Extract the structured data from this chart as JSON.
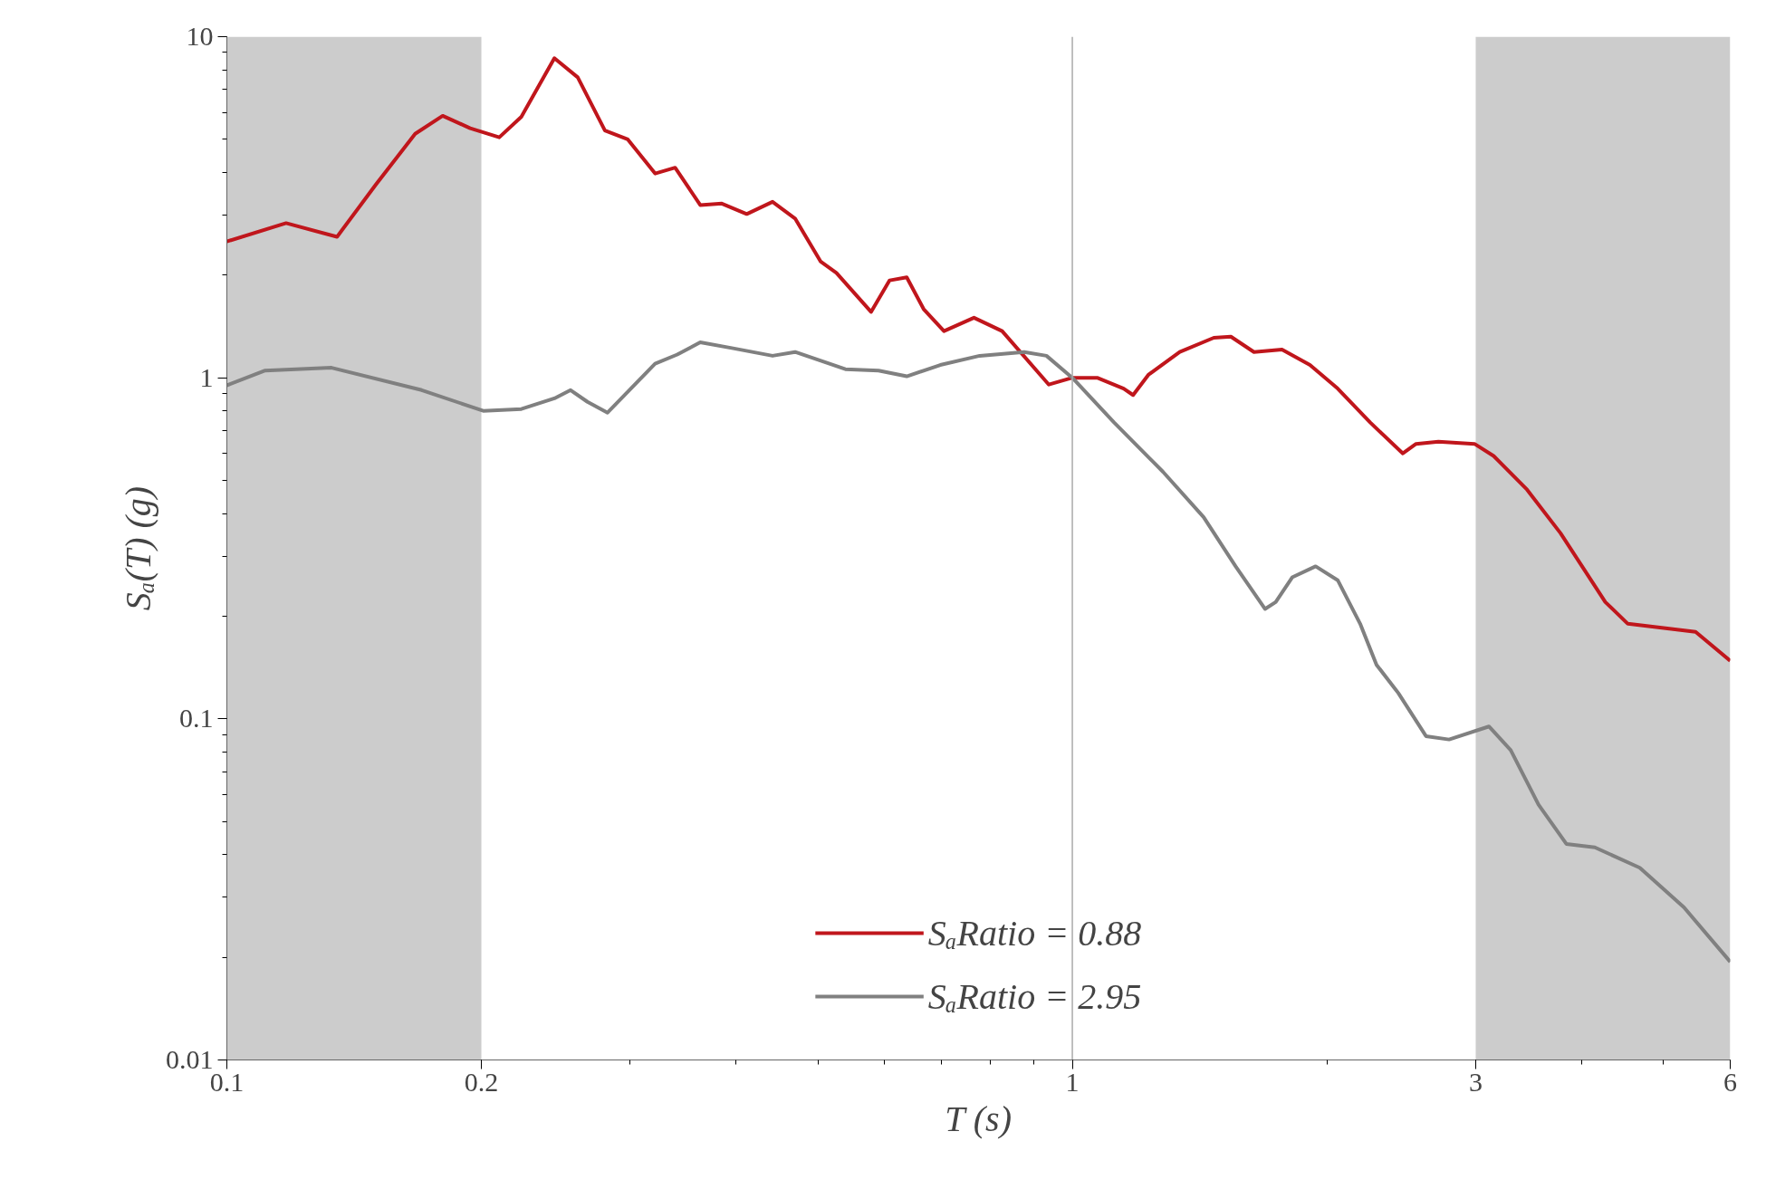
{
  "chart_data": {
    "type": "line",
    "xlabel": "T (s)",
    "ylabel": "Sₐ(T) (g)",
    "log": "xy",
    "xlim": [
      0.1,
      6
    ],
    "ylim": [
      0.01,
      10
    ],
    "xticks": [
      0.1,
      0.2,
      1,
      3,
      6
    ],
    "yticks": [
      0.01,
      0.1,
      1,
      10
    ],
    "grid": false,
    "legend": "bottom",
    "ref_lines": [
      {
        "axis": "x",
        "value": 1,
        "color": "#aaaaaa"
      }
    ],
    "bands": [
      {
        "axis": "x",
        "from": 0.1,
        "to": 0.2,
        "color": "#cccccc"
      },
      {
        "axis": "x",
        "from": 3,
        "to": 6,
        "color": "#cccccc"
      }
    ],
    "series": [
      {
        "name": "SₐRatio = 0.88",
        "color": "#c0161c",
        "x": [
          0.1,
          0.1175,
          0.135,
          0.15,
          0.167,
          0.18,
          0.194,
          0.21,
          0.223,
          0.244,
          0.26,
          0.28,
          0.298,
          0.321,
          0.339,
          0.363,
          0.385,
          0.412,
          0.442,
          0.47,
          0.504,
          0.526,
          0.578,
          0.608,
          0.637,
          0.667,
          0.705,
          0.765,
          0.826,
          0.938,
          1,
          1.07,
          1.15,
          1.18,
          1.23,
          1.34,
          1.47,
          1.54,
          1.64,
          1.77,
          1.91,
          2.06,
          2.25,
          2.46,
          2.55,
          2.71,
          2.99,
          3.15,
          3.45,
          3.78,
          4.27,
          4.54,
          4.98,
          5.46,
          6
        ],
        "values": [
          2.51,
          2.84,
          2.59,
          3.68,
          5.19,
          5.86,
          5.39,
          5.07,
          5.82,
          8.65,
          7.6,
          5.31,
          5.0,
          3.97,
          4.13,
          3.21,
          3.24,
          3.02,
          3.28,
          2.93,
          2.19,
          2.03,
          1.56,
          1.93,
          1.97,
          1.59,
          1.37,
          1.5,
          1.37,
          0.955,
          1.0,
          1.0,
          0.93,
          0.89,
          1.02,
          1.19,
          1.31,
          1.32,
          1.19,
          1.21,
          1.09,
          0.93,
          0.74,
          0.6,
          0.64,
          0.65,
          0.64,
          0.59,
          0.47,
          0.35,
          0.22,
          0.19,
          0.185,
          0.18,
          0.148
        ]
      },
      {
        "name": "SₐRatio = 2.95",
        "color": "#808080",
        "x": [
          0.1,
          0.111,
          0.133,
          0.17,
          0.201,
          0.223,
          0.244,
          0.255,
          0.267,
          0.282,
          0.321,
          0.341,
          0.363,
          0.397,
          0.442,
          0.47,
          0.539,
          0.59,
          0.637,
          0.698,
          0.777,
          0.877,
          0.932,
          1,
          1.12,
          1.28,
          1.43,
          1.56,
          1.69,
          1.74,
          1.82,
          1.94,
          2.06,
          2.19,
          2.29,
          2.43,
          2.62,
          2.79,
          3.11,
          3.3,
          3.56,
          3.84,
          4.15,
          4.69,
          5.29,
          6
        ],
        "values": [
          0.95,
          1.05,
          1.07,
          0.92,
          0.8,
          0.81,
          0.87,
          0.92,
          0.85,
          0.79,
          1.1,
          1.17,
          1.27,
          1.22,
          1.16,
          1.19,
          1.06,
          1.05,
          1.01,
          1.09,
          1.16,
          1.19,
          1.16,
          1.0,
          0.74,
          0.53,
          0.39,
          0.28,
          0.21,
          0.22,
          0.26,
          0.28,
          0.255,
          0.19,
          0.144,
          0.119,
          0.089,
          0.087,
          0.095,
          0.081,
          0.056,
          0.043,
          0.042,
          0.0366,
          0.028,
          0.0194
        ]
      }
    ]
  }
}
